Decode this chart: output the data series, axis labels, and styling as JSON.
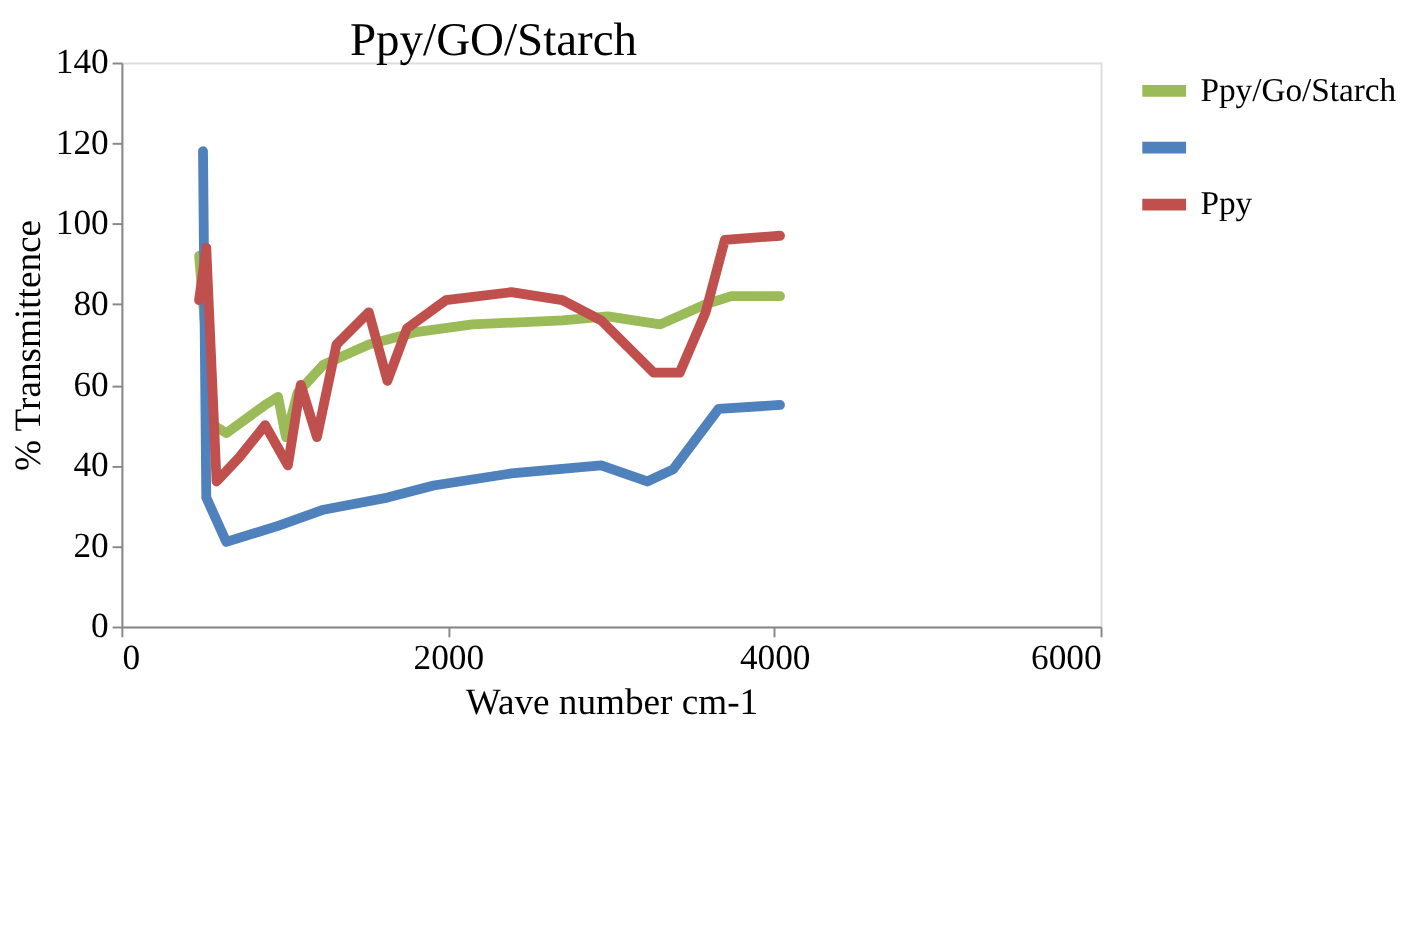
{
  "chart_data": {
    "type": "line",
    "title": "Ppy/GO/Starch",
    "xlabel": "Wave  number  cm-1",
    "ylabel": "% Transmittence",
    "xlim": [
      0,
      6000
    ],
    "xticks": [
      0,
      2000,
      4000,
      6000
    ],
    "ylim": [
      0,
      140
    ],
    "yticks": [
      0,
      20,
      40,
      60,
      80,
      100,
      120,
      140
    ],
    "grid": false,
    "legend": "right",
    "series": [
      {
        "name": "Ppy/Go/Starch",
        "color": "#9bbb59",
        "x": [
          476,
          563,
          643,
          881,
          960,
          1008,
          1079,
          1238,
          1516,
          1794,
          2151,
          2702,
          2980,
          3302,
          3580,
          3738,
          4036
        ],
        "values": [
          92,
          50,
          48,
          55,
          57,
          47,
          58,
          65,
          70,
          73,
          75,
          76,
          77,
          75,
          80,
          82,
          82
        ]
      },
      {
        "color": "#4f81bd",
        "x": [
          500,
          520,
          643,
          960,
          1238,
          1630,
          1913,
          2389,
          2940,
          3222,
          3381,
          3659,
          4036
        ],
        "values": [
          118,
          32,
          21,
          25,
          29,
          32,
          35,
          38,
          40,
          36,
          39,
          54,
          55
        ]
      },
      {
        "name": "Ppy",
        "color": "#c0504d",
        "x": [
          476,
          520,
          583,
          722,
          881,
          1020,
          1099,
          1198,
          1318,
          1516,
          1630,
          1750,
          1988,
          2389,
          2702,
          2940,
          3262,
          3421,
          3580,
          3698,
          4036
        ],
        "values": [
          81,
          94,
          36,
          42,
          50,
          40,
          60,
          47,
          70,
          78,
          61,
          74,
          81,
          83,
          81,
          76,
          63,
          63,
          78,
          96,
          97
        ]
      }
    ]
  }
}
